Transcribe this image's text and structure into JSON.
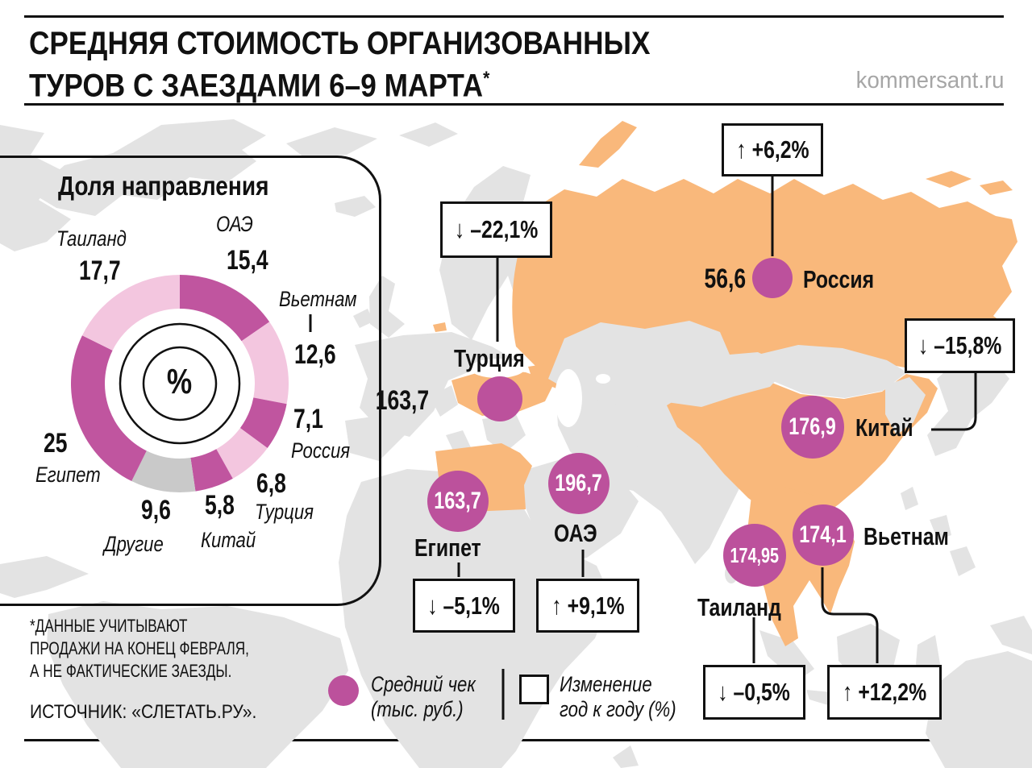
{
  "header": {
    "title_line1": "СРЕДНЯЯ СТОИМОСТЬ ОРГАНИЗОВАННЫХ",
    "title_line2": "ТУРОВ С ЗАЕЗДАМИ 6–9 МАРТА",
    "footnote_marker": "*",
    "site": "kommersant.ru"
  },
  "chart_data": [
    {
      "type": "pie",
      "title": "Доля направления",
      "unit": "%",
      "legend_position": "around",
      "segments": [
        {
          "label": "ОАЭ",
          "value": "15,4",
          "value_num": 15.4,
          "color": "#c0559f"
        },
        {
          "label": "Вьетнам",
          "value": "12,6",
          "value_num": 12.6,
          "color": "#f3c6df"
        },
        {
          "label": "Россия",
          "value": "7,1",
          "value_num": 7.1,
          "color": "#c0559f"
        },
        {
          "label": "Турция",
          "value": "6,8",
          "value_num": 6.8,
          "color": "#f3c6df"
        },
        {
          "label": "Китай",
          "value": "5,8",
          "value_num": 5.8,
          "color": "#c0559f"
        },
        {
          "label": "Другие",
          "value": "9,6",
          "value_num": 9.6,
          "color": "#c9c9c9"
        },
        {
          "label": "Египет",
          "value": "25",
          "value_num": 25,
          "color": "#c0559f"
        },
        {
          "label": "Таиланд",
          "value": "17,7",
          "value_num": 17.7,
          "color": "#f3c6df"
        }
      ]
    },
    {
      "type": "map",
      "title": "Средняя стоимость организованных туров с заездами 6–9 марта (тыс. руб.)",
      "series": [
        {
          "name": "Россия",
          "check": "56,6",
          "check_num": 56.6,
          "arrow": "↑",
          "change": "+6,2%",
          "change_num": 6.2
        },
        {
          "name": "Турция",
          "check": "163,7",
          "check_num": 163.7,
          "arrow": "↓",
          "change": "–22,1%",
          "change_num": -22.1
        },
        {
          "name": "Египет",
          "check": "163,7",
          "check_num": 163.7,
          "arrow": "↓",
          "change": "–5,1%",
          "change_num": -5.1
        },
        {
          "name": "ОАЭ",
          "check": "196,7",
          "check_num": 196.7,
          "arrow": "↑",
          "change": "+9,1%",
          "change_num": 9.1
        },
        {
          "name": "Китай",
          "check": "176,9",
          "check_num": 176.9,
          "arrow": "↓",
          "change": "–15,8%",
          "change_num": -15.8
        },
        {
          "name": "Таиланд",
          "check": "174,95",
          "check_num": 174.95,
          "arrow": "↓",
          "change": "–0,5%",
          "change_num": -0.5
        },
        {
          "name": "Вьетнам",
          "check": "174,1",
          "check_num": 174.1,
          "arrow": "↑",
          "change": "+12,2%",
          "change_num": 12.2
        }
      ]
    }
  ],
  "legend": {
    "avg_check_line1": "Средний чек",
    "avg_check_line2": "(тыс. руб.)",
    "yoy_line1": "Изменение",
    "yoy_line2": "год к году (%)"
  },
  "footnote": {
    "line1": "*ДАННЫЕ УЧИТЫВАЮТ",
    "line2": "ПРОДАЖИ НА КОНЕЦ ФЕВРАЛЯ,",
    "line3": "А НЕ ФАКТИЧЕСКИЕ ЗАЕЗДЫ.",
    "source": "ИСТОЧНИК: «СЛЕТАТЬ.РУ»."
  },
  "colors": {
    "highlight_country": "#f9b87b",
    "other_country": "#e3e3e3",
    "bubble": "#bc519c",
    "donut_dark": "#c0559f",
    "donut_light": "#f3c6df",
    "donut_gray": "#c9c9c9"
  }
}
